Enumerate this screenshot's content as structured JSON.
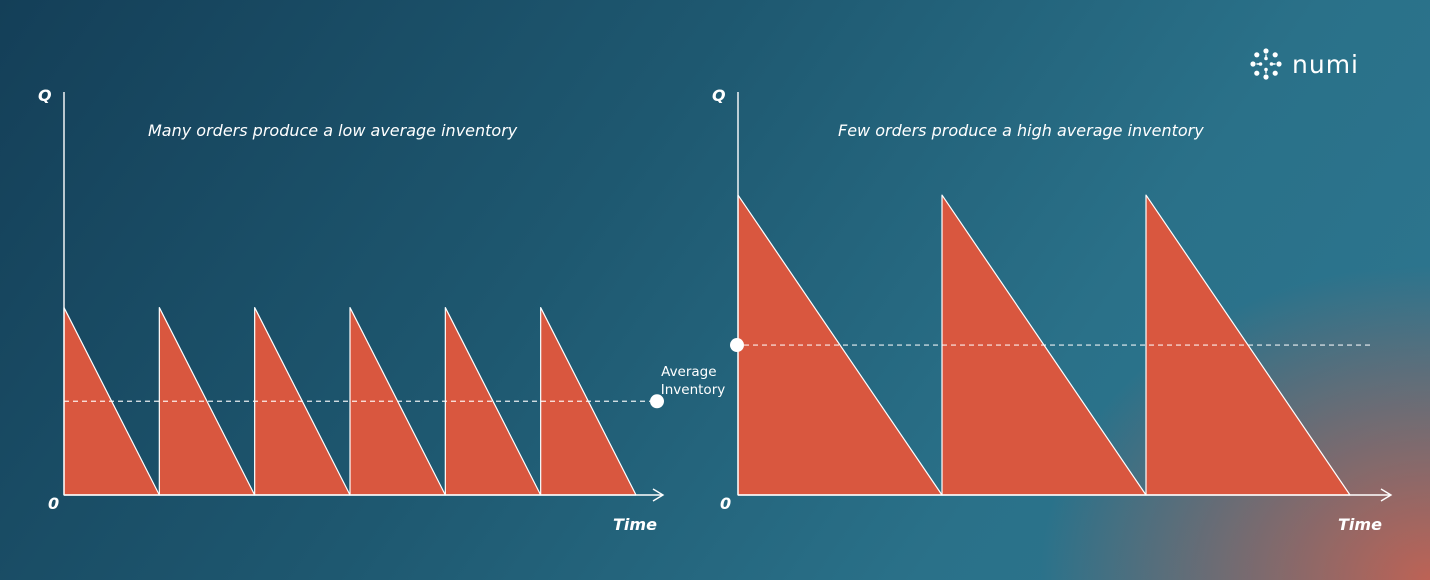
{
  "brand": {
    "name": "numi",
    "icon": "numi-logo-icon"
  },
  "colors": {
    "sawtooth_fill": "#d9573f",
    "line": "#ffffff"
  },
  "average_label": "Average\nInventory",
  "chart_data": [
    {
      "type": "area",
      "title": "Many orders produce a low average inventory",
      "ylabel": "Q",
      "xlabel": "Time",
      "origin_label": "0",
      "orders": 6,
      "order_quantity": 1,
      "average_inventory": 0.5,
      "ylim": [
        0,
        2.15
      ],
      "grid": false
    },
    {
      "type": "area",
      "title": "Few orders produce a high average inventory",
      "ylabel": "Q",
      "xlabel": "Time",
      "origin_label": "0",
      "orders": 3,
      "order_quantity": 1.6,
      "average_inventory": 0.8,
      "ylim": [
        0,
        2.15
      ],
      "grid": false
    }
  ]
}
